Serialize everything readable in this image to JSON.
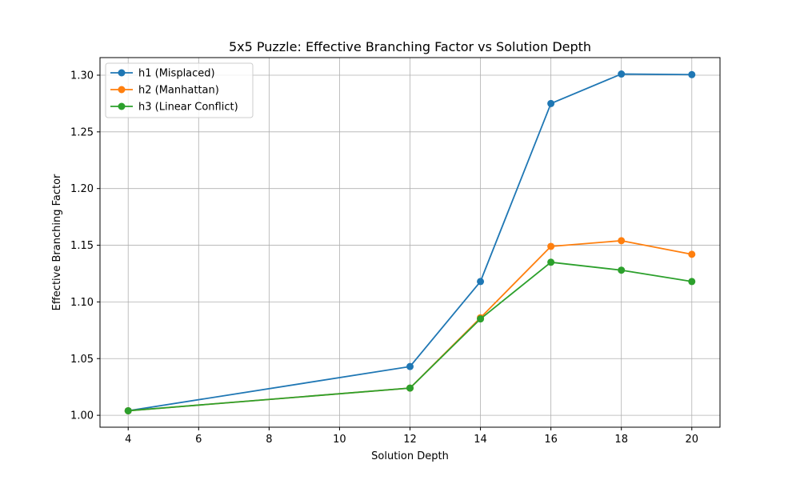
{
  "chart_data": {
    "type": "line",
    "title": "5x5 Puzzle: Effective Branching Factor vs Solution Depth",
    "xlabel": "Solution Depth",
    "ylabel": "Effective Branching Factor",
    "x": [
      4,
      12,
      14,
      16,
      18,
      20
    ],
    "xlim": [
      3.2,
      20.8
    ],
    "ylim": [
      0.9895,
      1.3155
    ],
    "xticks": [
      4,
      6,
      8,
      10,
      12,
      14,
      16,
      18,
      20
    ],
    "yticks": [
      1.0,
      1.05,
      1.1,
      1.15,
      1.2,
      1.25,
      1.3
    ],
    "ytick_labels": [
      "1.00",
      "1.05",
      "1.10",
      "1.15",
      "1.20",
      "1.25",
      "1.30"
    ],
    "grid": true,
    "legend_position": "top-left",
    "series": [
      {
        "name": "h1 (Misplaced)",
        "color": "#1f77b4",
        "values": [
          1.004,
          1.043,
          1.118,
          1.275,
          1.301,
          1.3005
        ]
      },
      {
        "name": "h2 (Manhattan)",
        "color": "#ff7f0e",
        "values": [
          1.004,
          1.024,
          1.086,
          1.149,
          1.154,
          1.142
        ]
      },
      {
        "name": "h3 (Linear Conflict)",
        "color": "#2ca02c",
        "values": [
          1.004,
          1.024,
          1.085,
          1.135,
          1.128,
          1.118
        ]
      }
    ]
  }
}
